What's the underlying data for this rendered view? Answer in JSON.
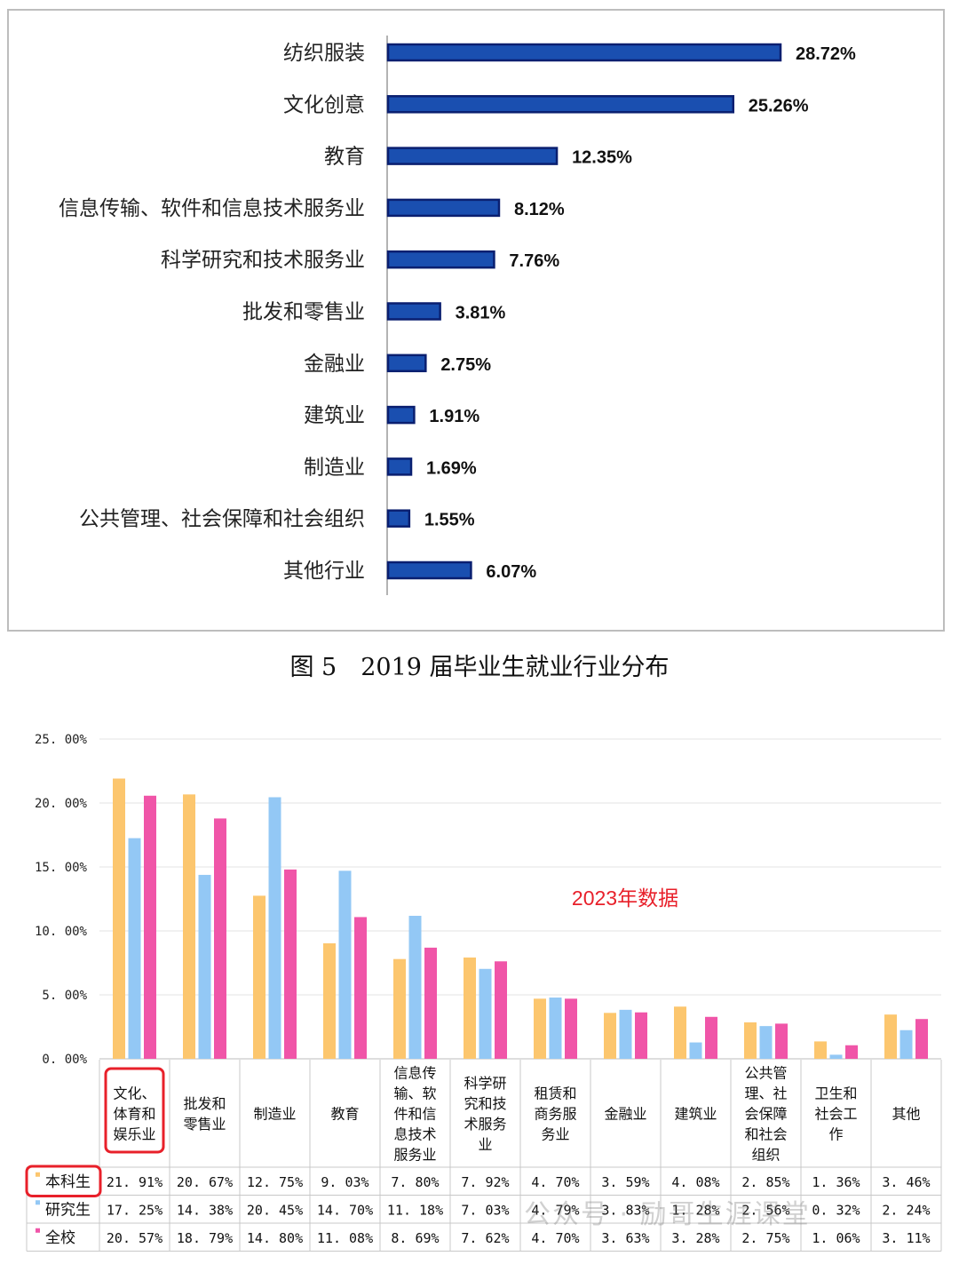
{
  "caption": "图 5　2019 届毕业生就业行业分布",
  "watermark": "公众号 · 励哥生涯课堂",
  "chart_data": [
    {
      "type": "bar",
      "orientation": "horizontal",
      "categories": [
        "纺织服装",
        "文化创意",
        "教育",
        "信息传输、软件和信息技术服务业",
        "科学研究和技术服务业",
        "批发和零售业",
        "金融业",
        "建筑业",
        "制造业",
        "公共管理、社会保障和社会组织",
        "其他行业"
      ],
      "values": [
        28.72,
        25.26,
        12.35,
        8.12,
        7.76,
        3.81,
        2.75,
        1.91,
        1.69,
        1.55,
        6.07
      ],
      "value_labels": [
        "28.72%",
        "25.26%",
        "12.35%",
        "8.12%",
        "7.76%",
        "3.81%",
        "2.75%",
        "1.91%",
        "1.69%",
        "1.55%",
        "6.07%"
      ],
      "bar_color": "#1a4fb0",
      "bar_edge_color": "#0a1f70"
    },
    {
      "type": "bar",
      "annotation": "2023年数据",
      "annotation_color": "#e8202a",
      "ylim": [
        0,
        25
      ],
      "yticks": [
        "0. 00%",
        "5. 00%",
        "10. 00%",
        "15. 00%",
        "20. 00%",
        "25. 00%"
      ],
      "categories": [
        [
          "文化、",
          "体育和",
          "娱乐业"
        ],
        [
          "批发和",
          "零售业"
        ],
        [
          "制造业"
        ],
        [
          "教育"
        ],
        [
          "信息传",
          "输、软",
          "件和信",
          "息技术",
          "服务业"
        ],
        [
          "科学研",
          "究和技",
          "术服务",
          "业"
        ],
        [
          "租赁和",
          "商务服",
          "务业"
        ],
        [
          "金融业"
        ],
        [
          "建筑业"
        ],
        [
          "公共管",
          "理、社",
          "会保障",
          "和社会",
          "组织"
        ],
        [
          "卫生和",
          "社会工",
          "作"
        ],
        [
          "其他"
        ]
      ],
      "series": [
        {
          "name": "本科生",
          "color": "#fcc66e",
          "values": [
            21.91,
            20.67,
            12.75,
            9.03,
            7.8,
            7.92,
            4.7,
            3.59,
            4.08,
            2.85,
            1.36,
            3.46
          ],
          "labels": [
            "21. 91%",
            "20. 67%",
            "12. 75%",
            "9. 03%",
            "7. 80%",
            "7. 92%",
            "4. 70%",
            "3. 59%",
            "4. 08%",
            "2. 85%",
            "1. 36%",
            "3. 46%"
          ]
        },
        {
          "name": "研究生",
          "color": "#93c8f5",
          "values": [
            17.25,
            14.38,
            20.45,
            14.7,
            11.18,
            7.03,
            4.79,
            3.83,
            1.28,
            2.56,
            0.32,
            2.24
          ],
          "labels": [
            "17. 25%",
            "14. 38%",
            "20. 45%",
            "14. 70%",
            "11. 18%",
            "7. 03%",
            "4. 79%",
            "3. 83%",
            "1. 28%",
            "2. 56%",
            "0. 32%",
            "2. 24%"
          ]
        },
        {
          "name": "全校",
          "color": "#f055a8",
          "values": [
            20.57,
            18.79,
            14.8,
            11.08,
            8.69,
            7.62,
            4.7,
            3.63,
            3.28,
            2.75,
            1.06,
            3.11
          ],
          "labels": [
            "20. 57%",
            "18. 79%",
            "14. 80%",
            "11. 08%",
            "8. 69%",
            "7. 62%",
            "4. 70%",
            "3. 63%",
            "3. 28%",
            "2. 75%",
            "1. 06%",
            "3. 11%"
          ]
        }
      ],
      "highlight_color": "#e8202a",
      "highlight": [
        "文化、体育和娱乐业",
        "本科生"
      ]
    }
  ]
}
